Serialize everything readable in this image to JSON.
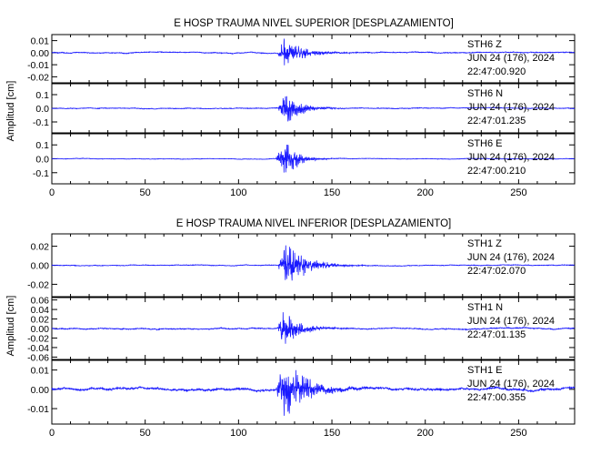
{
  "chart_data": [
    {
      "type": "line",
      "title": "E HOSP TRAUMA NIVEL SUPERIOR [DESPLAZAMIENTO]",
      "ylabel": "Amplitud [cm]",
      "xlim": [
        0,
        280
      ],
      "xticks": [
        0,
        50,
        100,
        150,
        200,
        250
      ],
      "trace_color": "#1a1aff",
      "series": [
        {
          "station": "STH6",
          "component": "Z",
          "date": "JUN 24 (176), 2024",
          "time": "22:47:00.920",
          "ylim": [
            -0.025,
            0.015
          ],
          "yticks": [
            "0.01",
            "0.00",
            "-0.01",
            "-0.02"
          ],
          "ytick_values": [
            0.01,
            0.0,
            -0.01,
            -0.02
          ],
          "onset": 121,
          "peak_time": 124,
          "peak_amplitude": 0.015,
          "decay": 9,
          "noise": 0.0004
        },
        {
          "station": "STH6",
          "component": "N",
          "date": "JUN 24 (176), 2024",
          "time": "22:47:01.235",
          "ylim": [
            -0.18,
            0.18
          ],
          "yticks": [
            "0.1",
            "0.0",
            "-0.1"
          ],
          "ytick_values": [
            0.1,
            0.0,
            -0.1
          ],
          "onset": 121,
          "peak_time": 125,
          "peak_amplitude": 0.13,
          "decay": 8,
          "noise": 0.003
        },
        {
          "station": "STH6",
          "component": "E",
          "date": "JUN 24 (176), 2024",
          "time": "22:47:00.210",
          "ylim": [
            -0.18,
            0.18
          ],
          "yticks": [
            "0.1",
            "0.0",
            "-0.1"
          ],
          "ytick_values": [
            0.1,
            0.0,
            -0.1
          ],
          "onset": 120,
          "peak_time": 125,
          "peak_amplitude": 0.17,
          "decay": 6,
          "noise": 0.002
        }
      ]
    },
    {
      "type": "line",
      "title": "E HOSP TRAUMA NIVEL INFERIOR [DESPLAZAMIENTO]",
      "ylabel": "Amplitud [cm]",
      "xlim": [
        0,
        280
      ],
      "xticks": [
        0,
        50,
        100,
        150,
        200,
        250
      ],
      "trace_color": "#1a1aff",
      "series": [
        {
          "station": "STH1",
          "component": "Z",
          "date": "JUN 24 (176), 2024",
          "time": "22:47:02.070",
          "ylim": [
            -0.033,
            0.033
          ],
          "yticks": [
            "0.02",
            "0.00",
            "-0.02"
          ],
          "ytick_values": [
            0.02,
            0.0,
            -0.02
          ],
          "onset": 121,
          "peak_time": 125,
          "peak_amplitude": 0.031,
          "decay": 10,
          "noise": 0.0004
        },
        {
          "station": "STH1",
          "component": "N",
          "date": "JUN 24 (176), 2024",
          "time": "22:47:01.135",
          "ylim": [
            -0.065,
            0.065
          ],
          "yticks": [
            "0.06",
            "0.04",
            "0.02",
            "0.00",
            "-0.02",
            "-0.04",
            "-0.06"
          ],
          "ytick_values": [
            0.06,
            0.04,
            0.02,
            0.0,
            -0.02,
            -0.04,
            -0.06
          ],
          "onset": 121,
          "peak_time": 124,
          "peak_amplitude": 0.045,
          "decay": 8,
          "noise": 0.0012
        },
        {
          "station": "STH1",
          "component": "E",
          "date": "JUN 24 (176), 2024",
          "time": "22:47:00.355",
          "ylim": [
            -0.018,
            0.015
          ],
          "yticks": [
            "0.01",
            "0.00",
            "-0.01"
          ],
          "ytick_values": [
            0.01,
            0.0,
            -0.01
          ],
          "onset": 120,
          "peak_time": 124,
          "peak_amplitude": 0.017,
          "decay": 12,
          "noise": 0.0006
        }
      ]
    }
  ]
}
